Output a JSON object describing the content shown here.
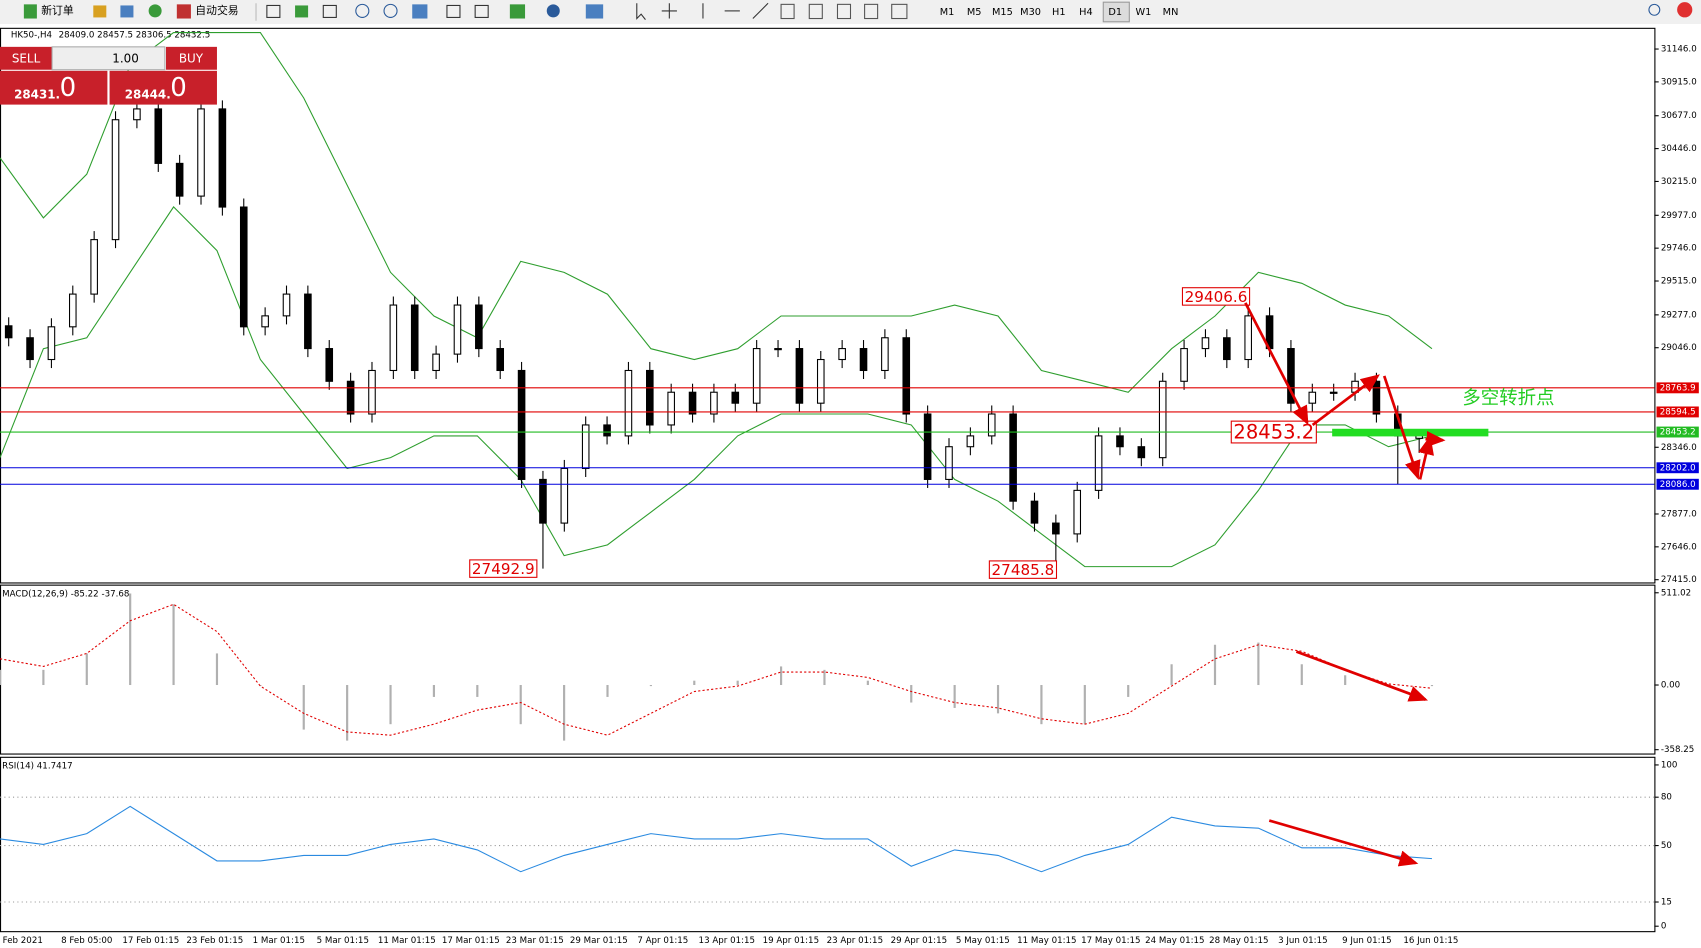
{
  "toolbar": {
    "new_order": "新订单",
    "auto_trading": "自动交易",
    "timeframes": [
      "M1",
      "M5",
      "M15",
      "M30",
      "H1",
      "H4",
      "D1",
      "W1",
      "MN"
    ]
  },
  "trade_panel": {
    "sell": "SELL",
    "buy": "BUY",
    "lots": "1.00",
    "bid_main": "28431.",
    "bid_big": "0",
    "ask_main": "28444.",
    "ask_big": "0"
  },
  "chart_data": [
    {
      "type": "candlestick",
      "title": "HK50-,H4",
      "ohlc_label": "28409.0 28457.5 28306.5 28432.5",
      "categories": [
        "Feb 2021",
        "8 Feb 05:00",
        "17 Feb 01:15",
        "23 Feb 01:15",
        "1 Mar 01:15",
        "5 Mar 01:15",
        "11 Mar 01:15",
        "17 Mar 01:15",
        "23 Mar 01:15",
        "29 Mar 01:15",
        "7 Apr 01:15",
        "13 Apr 01:15",
        "19 Apr 01:15",
        "23 Apr 01:15",
        "29 Apr 01:15",
        "5 May 01:15",
        "11 May 01:15",
        "17 May 01:15",
        "24 May 01:15",
        "28 May 01:15",
        "3 Jun 01:15",
        "9 Jun 01:15",
        "16 Jun 01:15"
      ],
      "ylim": [
        27415,
        31146
      ],
      "yticks": [
        {
          "value": 31146,
          "label": "31146.0"
        },
        {
          "value": 30915,
          "label": "30915.0"
        },
        {
          "value": 30677,
          "label": "30677.0"
        },
        {
          "value": 30446,
          "label": "30446.0"
        },
        {
          "value": 30215,
          "label": "30215.0"
        },
        {
          "value": 29977,
          "label": "29977.0"
        },
        {
          "value": 29746,
          "label": "29746.0"
        },
        {
          "value": 29515,
          "label": "29515.0"
        },
        {
          "value": 29277,
          "label": "29277.0"
        },
        {
          "value": 29046,
          "label": "29046.0"
        },
        {
          "value": 28346,
          "label": "28346.0"
        },
        {
          "value": 27877,
          "label": "27877.0"
        },
        {
          "value": 27646,
          "label": "27646.0"
        },
        {
          "value": 27415,
          "label": "27415.0"
        }
      ],
      "candles": {
        "open": [
          29200,
          29116,
          28963,
          29193,
          29423,
          29806,
          30649,
          30725,
          30342,
          30112,
          30725,
          30035,
          29193,
          29270,
          29423,
          29040,
          28810,
          28580,
          28886,
          29346,
          28886,
          29001,
          29346,
          29040,
          28886,
          28120,
          27813,
          28197,
          28503,
          28426,
          28886,
          28503,
          28733,
          28580,
          28733,
          28656,
          29040,
          29040,
          28656,
          28963,
          29040,
          28886,
          29116,
          28580,
          28120,
          28350,
          28426,
          28580,
          27967,
          27813,
          27737,
          28043,
          28426,
          28350,
          28273,
          28810,
          29040,
          29116,
          28963,
          29270,
          29040,
          28656,
          28733,
          28733,
          28810,
          28580,
          28409
        ],
        "high": [
          29260,
          29176,
          29253,
          29483,
          29866,
          30709,
          30785,
          30785,
          30402,
          30785,
          30785,
          30095,
          29330,
          29483,
          29483,
          29100,
          28870,
          28946,
          29406,
          29406,
          29061,
          29406,
          29406,
          29100,
          28946,
          28180,
          28257,
          28563,
          28563,
          28946,
          28946,
          28793,
          28793,
          28793,
          28793,
          29100,
          29100,
          29100,
          29023,
          29100,
          29100,
          29176,
          29176,
          28640,
          28410,
          28486,
          28640,
          28640,
          28027,
          27873,
          28103,
          28486,
          28486,
          28410,
          28870,
          29100,
          29176,
          29176,
          29406.6,
          29330,
          29100,
          28793,
          28793,
          28870,
          28870,
          28640,
          28457.5
        ],
        "low": [
          29056,
          28903,
          28903,
          29133,
          29363,
          29746,
          30589,
          30282,
          30052,
          30052,
          29975,
          29133,
          29133,
          29210,
          28980,
          28750,
          28520,
          28520,
          28826,
          28826,
          28826,
          28941,
          28980,
          28826,
          28060,
          27492.9,
          27753,
          28137,
          28366,
          28366,
          28443,
          28443,
          28520,
          28520,
          28596,
          28596,
          28980,
          28596,
          28596,
          28903,
          28826,
          28826,
          28520,
          28060,
          28060,
          28290,
          28366,
          27907,
          27753,
          27485.8,
          27677,
          27983,
          28290,
          28213,
          28213,
          28750,
          28980,
          28903,
          28903,
          28980,
          28596,
          28596,
          28673,
          28673,
          28520,
          28086,
          28306.5
        ],
        "close": [
          29116,
          28963,
          29193,
          29423,
          29806,
          30649,
          30725,
          30342,
          30112,
          30725,
          30035,
          29193,
          29270,
          29423,
          29040,
          28810,
          28580,
          28886,
          29346,
          28886,
          29001,
          29346,
          29040,
          28886,
          28120,
          27813,
          28197,
          28503,
          28426,
          28886,
          28503,
          28733,
          28580,
          28733,
          28656,
          29040,
          29040,
          28656,
          28963,
          29040,
          28886,
          29116,
          28580,
          28120,
          28350,
          28426,
          28580,
          27967,
          27813,
          27737,
          28043,
          28426,
          28350,
          28273,
          28810,
          29040,
          29116,
          28963,
          29270,
          29040,
          28656,
          28733,
          28733,
          28810,
          28580,
          28426,
          28432.5
        ]
      },
      "bands": {
        "color": "#2e9e2e",
        "upper": [
          30381,
          29959,
          30266,
          31032,
          31262,
          31262,
          31262,
          30802,
          30189,
          29576,
          29269,
          29116,
          29653,
          29576,
          29422,
          29039,
          28963,
          29039,
          29269,
          29269,
          29269,
          29269,
          29346,
          29269,
          28886,
          28810,
          28733,
          29039,
          29269,
          29576,
          29499,
          29346,
          29269,
          29039
        ],
        "lower": [
          28273,
          29039,
          29116,
          29576,
          30036,
          29729,
          28963,
          28580,
          28197,
          28273,
          28426,
          28426,
          28120,
          27584,
          27660,
          27890,
          28120,
          28426,
          28580,
          28580,
          28580,
          28503,
          28120,
          27967,
          27737,
          27507,
          27507,
          27507,
          27660,
          28043,
          28503,
          28503,
          28350,
          28426
        ]
      },
      "levels": [
        {
          "value": 28763.9,
          "label": "28763.9",
          "color": "#e00000"
        },
        {
          "value": 28594.5,
          "label": "28594.5",
          "color": "#e00000"
        },
        {
          "value": 28453.2,
          "label": "28453.2",
          "color": "#22bb22"
        },
        {
          "value": 28202,
          "label": "28202.0",
          "color": "#0000dd"
        },
        {
          "value": 28086,
          "label": "28086.0",
          "color": "#0000dd"
        }
      ],
      "annotations": [
        29406.6,
        27492.9,
        27485.8,
        28453.2
      ],
      "note": "多空转折点"
    },
    {
      "type": "macd",
      "title": "MACD(12,26,9) -85.22 -37.68",
      "ylim": [
        -358.25,
        511.02
      ],
      "yticks": [
        {
          "value": 511.02,
          "label": "511.02"
        },
        {
          "value": 0,
          "label": "0.00"
        },
        {
          "value": -358.25,
          "label": "-358.25"
        }
      ],
      "histogram": [
        84,
        84,
        175,
        507,
        447,
        175,
        -6,
        -247,
        -308,
        -217,
        -66,
        -66,
        -217,
        -308,
        -66,
        -6,
        24,
        24,
        103,
        84,
        24,
        -97,
        -127,
        -157,
        -217,
        -217,
        -66,
        115,
        223,
        235,
        115,
        54,
        -6,
        -6
      ],
      "signal": [
        145,
        103,
        175,
        356,
        447,
        296,
        -6,
        -157,
        -260,
        -278,
        -217,
        -139,
        -97,
        -217,
        -278,
        -157,
        -36,
        -6,
        72,
        72,
        42,
        -36,
        -97,
        -127,
        -187,
        -217,
        -157,
        -6,
        145,
        223,
        187,
        84,
        6,
        -18
      ]
    },
    {
      "type": "rsi",
      "title": "RSI(14) 41.7417",
      "ylim": [
        0,
        100
      ],
      "yticks": [
        100,
        80,
        50,
        15,
        0
      ],
      "grid_levels": [
        80,
        50,
        15
      ],
      "values": [
        54.1,
        50.7,
        57.4,
        74.3,
        57.4,
        40.5,
        40.5,
        43.9,
        43.9,
        50.7,
        54.1,
        47.3,
        33.8,
        43.9,
        50.7,
        57.4,
        54.1,
        54.1,
        57.4,
        54.1,
        54.1,
        37.2,
        47.3,
        43.9,
        33.8,
        43.9,
        50.7,
        67.6,
        62.2,
        60.8,
        48.6,
        48.6,
        43.9,
        41.9
      ]
    }
  ]
}
